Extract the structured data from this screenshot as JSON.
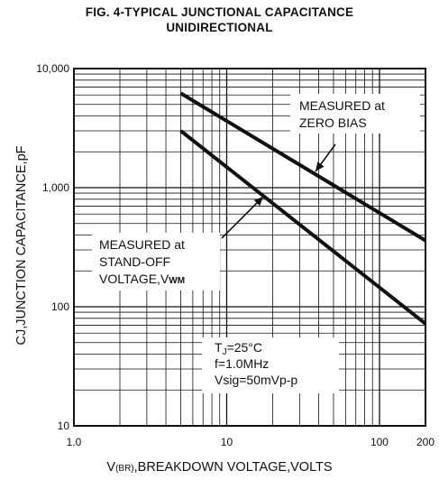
{
  "chart_data": {
    "type": "line",
    "title": "FIG. 4-TYPICAL JUNCTIONAL CAPACITANCE",
    "subtitle": "UNIDIRECTIONAL",
    "xlabel": "V(BR),BREAKDOWN VOLTAGE,VOLTS",
    "xlabel_main": "V",
    "xlabel_sub": "(BR)",
    "xlabel_rest": ",BREAKDOWN VOLTAGE,VOLTS",
    "ylabel": "CJ,JUNCTION CAPACITANCE,pF",
    "x_scale": "log",
    "y_scale": "log",
    "xlim": [
      1,
      200
    ],
    "ylim": [
      10,
      10000
    ],
    "grid": true,
    "x_ticks": [
      {
        "value": 1,
        "label": "1.0"
      },
      {
        "value": 10,
        "label": "10"
      },
      {
        "value": 100,
        "label": "100"
      },
      {
        "value": 200,
        "label": "200"
      }
    ],
    "y_ticks": [
      {
        "value": 10,
        "label": "10"
      },
      {
        "value": 100,
        "label": "100"
      },
      {
        "value": 1000,
        "label": "1,000"
      },
      {
        "value": 10000,
        "label": "10,000"
      }
    ],
    "series": [
      {
        "name": "MEASURED at ZERO BIAS",
        "x": [
          5,
          200
        ],
        "y": [
          6200,
          360
        ]
      },
      {
        "name": "MEASURED at STAND-OFF VOLTAGE,VWM",
        "x": [
          5,
          200
        ],
        "y": [
          3000,
          72
        ]
      }
    ],
    "annotations": {
      "zero_bias": [
        "MEASURED at",
        "ZERO BIAS"
      ],
      "standoff": [
        "MEASURED at",
        "STAND-OFF",
        "VOLTAGE,V"
      ],
      "standoff_sub": "WM",
      "conditions": [
        "T",
        "f=1.0MHz",
        "Vsig=50mVp-p"
      ],
      "cond_sub": "J",
      "cond_rest": "=25°C"
    }
  }
}
